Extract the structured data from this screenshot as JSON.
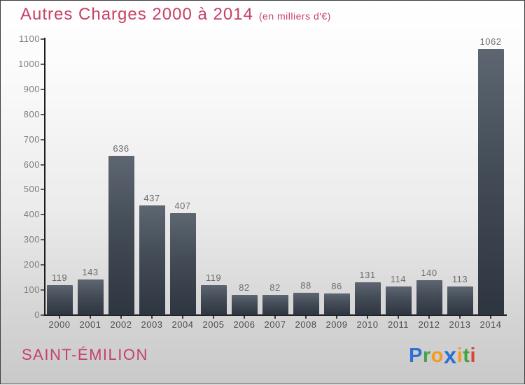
{
  "header": {
    "title": "Autres Charges 2000 à 2014",
    "subtitle": "(en milliers d'€)"
  },
  "footer": {
    "place": "SAINT-ÉMILION",
    "logo": {
      "name": "Proxiti",
      "letters": [
        {
          "ch": "P",
          "color": "#2e6fd4"
        },
        {
          "ch": "r",
          "color": "#44a344"
        },
        {
          "ch": "o",
          "color": "#f59a1d"
        },
        {
          "ch": "x",
          "color": "#2e6fd4",
          "big": true
        },
        {
          "ch": "i",
          "color": "#f59a1d"
        },
        {
          "ch": "t",
          "color": "#44a344"
        },
        {
          "ch": "i",
          "color": "#d9432f"
        }
      ]
    }
  },
  "chart_data": {
    "type": "bar",
    "title": "Autres Charges 2000 à 2014",
    "subtitle": "(en milliers d'€)",
    "categories": [
      "2000",
      "2001",
      "2002",
      "2003",
      "2004",
      "2005",
      "2006",
      "2007",
      "2008",
      "2009",
      "2010",
      "2011",
      "2012",
      "2013",
      "2014"
    ],
    "values": [
      119,
      143,
      636,
      437,
      407,
      119,
      82,
      82,
      88,
      86,
      131,
      114,
      140,
      113,
      1062
    ],
    "xlabel": "",
    "ylabel": "",
    "ylim": [
      0,
      1100
    ],
    "ytick_step": 100,
    "grid": false,
    "legend": "none",
    "value_labels": "above-bars",
    "colors": {
      "title": "#c6416a",
      "bar_top": "#5d6671",
      "bar_bottom": "#2d3540",
      "axis": "#1c1c1c",
      "y_tick_label": "#7d7d7d",
      "x_tick_label": "#4d4d4d",
      "value_label": "#6b6b6b",
      "background_top": "#ffffff",
      "background_bottom": "#c9c9c9"
    }
  }
}
